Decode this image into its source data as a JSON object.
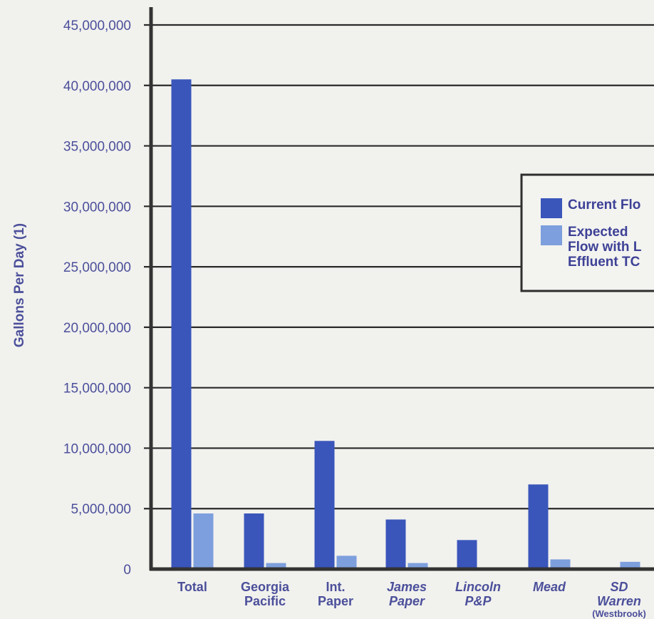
{
  "chart_data": {
    "type": "bar",
    "ylabel": "Gallons Per Day (1)",
    "ylim": [
      0,
      45000000
    ],
    "yticks": [
      {
        "value": 0,
        "label": "0"
      },
      {
        "value": 5000000,
        "label": "5,000,000"
      },
      {
        "value": 10000000,
        "label": "10,000,000"
      },
      {
        "value": 15000000,
        "label": "15,000,000"
      },
      {
        "value": 20000000,
        "label": "20,000,000"
      },
      {
        "value": 25000000,
        "label": "25,000,000"
      },
      {
        "value": 30000000,
        "label": "30,000,000"
      },
      {
        "value": 35000000,
        "label": "35,000,000"
      },
      {
        "value": 40000000,
        "label": "40,000,000"
      },
      {
        "value": 45000000,
        "label": "45,000,000"
      }
    ],
    "categories": [
      {
        "lines": [
          "Total"
        ],
        "italic": false
      },
      {
        "lines": [
          "Georgia",
          "Pacific"
        ],
        "italic": false
      },
      {
        "lines": [
          "Int.",
          "Paper"
        ],
        "italic": false
      },
      {
        "lines": [
          "James",
          "Paper"
        ],
        "italic": true
      },
      {
        "lines": [
          "Lincoln",
          "P&P"
        ],
        "italic": true
      },
      {
        "lines": [
          "Mead"
        ],
        "italic": true
      },
      {
        "lines": [
          "SD",
          "Warren",
          "(Westbrook)"
        ],
        "italic": true
      }
    ],
    "series": [
      {
        "name": "Current Flo",
        "color": "#3a56bb",
        "values": [
          40500000,
          4600000,
          10600000,
          4100000,
          2400000,
          7000000,
          null
        ]
      },
      {
        "name": "Expected Flow with L Effluent TC",
        "color": "#7d9fdd",
        "values": [
          4600000,
          500000,
          1100000,
          500000,
          null,
          800000,
          600000
        ]
      }
    ],
    "legend": {
      "position": "right",
      "entries": [
        {
          "lines": [
            "Current Flo"
          ],
          "color": "#3a56bb"
        },
        {
          "lines": [
            "Expected",
            "Flow with L",
            "Effluent TC"
          ],
          "color": "#7d9fdd"
        }
      ]
    },
    "grid": true
  }
}
